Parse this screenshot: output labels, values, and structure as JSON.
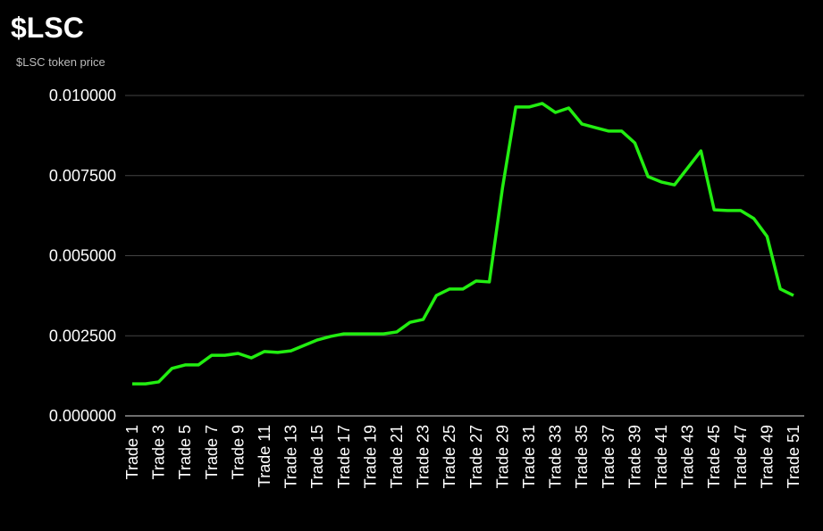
{
  "chart_data": {
    "type": "line",
    "title": "$LSC",
    "subtitle": "$LSC token price",
    "categories": [
      "Trade 1",
      null,
      "Trade 3",
      null,
      "Trade 5",
      null,
      "Trade 7",
      null,
      "Trade 9",
      null,
      "Trade 11",
      null,
      "Trade 13",
      null,
      "Trade 15",
      null,
      "Trade 17",
      null,
      "Trade 19",
      null,
      "Trade 21",
      null,
      "Trade 23",
      null,
      "Trade 25",
      null,
      "Trade 27",
      null,
      "Trade 29",
      null,
      "Trade 31",
      null,
      "Trade 33",
      null,
      "Trade 35",
      null,
      "Trade 37",
      null,
      "Trade 39",
      null,
      "Trade 41",
      null,
      "Trade 43",
      null,
      "Trade 45",
      null,
      "Trade 47",
      null,
      "Trade 49",
      null,
      "Trade 51"
    ],
    "series": [
      {
        "name": "$LSC token price",
        "color": "#22ee11",
        "values": [
          0.001,
          0.001,
          0.00106,
          0.00148,
          0.00159,
          0.00159,
          0.00189,
          0.00189,
          0.00195,
          0.00181,
          0.00201,
          0.00198,
          0.00203,
          0.0022,
          0.00237,
          0.00248,
          0.00256,
          0.00256,
          0.00256,
          0.00256,
          0.00262,
          0.00292,
          0.00301,
          0.00376,
          0.00396,
          0.00396,
          0.00421,
          0.00418,
          0.00713,
          0.00964,
          0.00964,
          0.00975,
          0.00947,
          0.00961,
          0.00911,
          0.009,
          0.00889,
          0.00889,
          0.00852,
          0.00747,
          0.0073,
          0.00721,
          0.00774,
          0.00827,
          0.00643,
          0.00641,
          0.00641,
          0.00616,
          0.0056,
          0.00396,
          0.00376
        ]
      }
    ],
    "ylim": [
      0,
      0.01
    ],
    "yticks": [
      {
        "value": 0,
        "label": "0.000000"
      },
      {
        "value": 0.0025,
        "label": "0.002500"
      },
      {
        "value": 0.005,
        "label": "0.005000"
      },
      {
        "value": 0.0075,
        "label": "0.007500"
      },
      {
        "value": 0.01,
        "label": "0.010000"
      }
    ],
    "grid": true
  }
}
